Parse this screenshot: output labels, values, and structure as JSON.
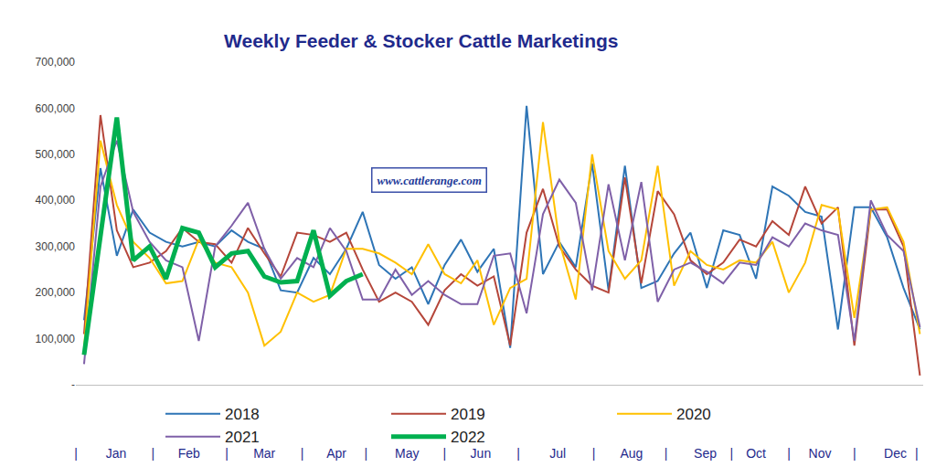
{
  "chart_data": {
    "type": "line",
    "title": "Weekly Feeder & Stocker Cattle Marketings",
    "x": [
      1,
      2,
      3,
      4,
      5,
      6,
      7,
      8,
      9,
      10,
      11,
      12,
      13,
      14,
      15,
      16,
      17,
      18,
      19,
      20,
      21,
      22,
      23,
      24,
      25,
      26,
      27,
      28,
      29,
      30,
      31,
      32,
      33,
      34,
      35,
      36,
      37,
      38,
      39,
      40,
      41,
      42,
      43,
      44,
      45,
      46,
      47,
      48,
      49,
      50,
      51,
      52
    ],
    "series": [
      {
        "name": "2018",
        "color": "#2e75b6",
        "values": [
          140000,
          470000,
          280000,
          380000,
          330000,
          310000,
          300000,
          310000,
          300000,
          335000,
          310000,
          295000,
          205000,
          200000,
          275000,
          240000,
          295000,
          375000,
          260000,
          230000,
          255000,
          175000,
          260000,
          315000,
          245000,
          295000,
          80000,
          605000,
          240000,
          310000,
          255000,
          480000,
          205000,
          475000,
          210000,
          225000,
          285000,
          330000,
          210000,
          335000,
          325000,
          230000,
          430000,
          410000,
          375000,
          365000,
          120000,
          385000,
          385000,
          320000,
          210000,
          120000
        ]
      },
      {
        "name": "2019",
        "color": "#b5463a",
        "values": [
          110000,
          585000,
          335000,
          255000,
          265000,
          290000,
          340000,
          310000,
          305000,
          265000,
          340000,
          285000,
          235000,
          330000,
          325000,
          310000,
          330000,
          250000,
          180000,
          200000,
          180000,
          130000,
          205000,
          240000,
          215000,
          235000,
          85000,
          330000,
          425000,
          300000,
          250000,
          215000,
          200000,
          450000,
          220000,
          420000,
          370000,
          270000,
          240000,
          265000,
          315000,
          300000,
          355000,
          325000,
          430000,
          350000,
          385000,
          85000,
          380000,
          380000,
          300000,
          20000
        ]
      },
      {
        "name": "2020",
        "color": "#ffc000",
        "values": [
          80000,
          530000,
          390000,
          310000,
          275000,
          220000,
          225000,
          315000,
          265000,
          255000,
          200000,
          85000,
          115000,
          200000,
          180000,
          195000,
          295000,
          295000,
          285000,
          265000,
          240000,
          305000,
          240000,
          220000,
          270000,
          130000,
          210000,
          230000,
          570000,
          310000,
          185000,
          500000,
          290000,
          230000,
          270000,
          475000,
          215000,
          290000,
          260000,
          250000,
          270000,
          265000,
          310000,
          200000,
          265000,
          390000,
          380000,
          145000,
          380000,
          385000,
          310000,
          110000
        ]
      },
      {
        "name": "2021",
        "color": "#7f60a8",
        "values": [
          45000,
          430000,
          530000,
          375000,
          310000,
          270000,
          255000,
          95000,
          300000,
          345000,
          395000,
          295000,
          230000,
          275000,
          255000,
          340000,
          290000,
          185000,
          185000,
          250000,
          195000,
          225000,
          195000,
          175000,
          175000,
          280000,
          285000,
          155000,
          370000,
          445000,
          395000,
          205000,
          435000,
          270000,
          440000,
          180000,
          250000,
          265000,
          245000,
          220000,
          265000,
          260000,
          320000,
          300000,
          350000,
          335000,
          325000,
          95000,
          400000,
          325000,
          290000,
          125000
        ]
      },
      {
        "name": "2022",
        "color": "#00b050",
        "values": [
          65000,
          330000,
          580000,
          270000,
          300000,
          230000,
          340000,
          330000,
          255000,
          285000,
          290000,
          235000,
          222000,
          225000,
          335000,
          193000,
          225000,
          240000,
          null,
          null,
          null,
          null,
          null,
          null,
          null,
          null,
          null,
          null,
          null,
          null,
          null,
          null,
          null,
          null,
          null,
          null,
          null,
          null,
          null,
          null,
          null,
          null,
          null,
          null,
          null,
          null,
          null,
          null,
          null,
          null,
          null,
          null
        ]
      }
    ],
    "xlim": [
      0.5,
      52.2
    ],
    "xticks": [
      {
        "value": 0.5,
        "label": "|"
      },
      {
        "value": 2.95,
        "label": "Jan"
      },
      {
        "value": 5.2,
        "label": "|"
      },
      {
        "value": 7.4,
        "label": "Feb"
      },
      {
        "value": 9.7,
        "label": "|"
      },
      {
        "value": 12.0,
        "label": "Mar"
      },
      {
        "value": 14.3,
        "label": "|"
      },
      {
        "value": 16.4,
        "label": "Apr"
      },
      {
        "value": 18.2,
        "label": "|"
      },
      {
        "value": 20.7,
        "label": "May"
      },
      {
        "value": 23.0,
        "label": "|"
      },
      {
        "value": 25.2,
        "label": "Jun"
      },
      {
        "value": 27.5,
        "label": "|"
      },
      {
        "value": 29.9,
        "label": "Jul"
      },
      {
        "value": 32.1,
        "label": "|"
      },
      {
        "value": 34.4,
        "label": "Aug"
      },
      {
        "value": 36.5,
        "label": "|"
      },
      {
        "value": 38.9,
        "label": "Sep"
      },
      {
        "value": 40.5,
        "label": "|"
      },
      {
        "value": 42.0,
        "label": "Oct"
      },
      {
        "value": 44.0,
        "label": "|"
      },
      {
        "value": 45.9,
        "label": "Nov"
      },
      {
        "value": 48.0,
        "label": "|"
      },
      {
        "value": 50.5,
        "label": "Dec"
      },
      {
        "value": 51.8,
        "label": "|"
      }
    ],
    "ylim": [
      0,
      700000
    ],
    "yticks": [
      {
        "value": 0,
        "label": "-"
      },
      {
        "value": 100000,
        "label": "100,000"
      },
      {
        "value": 200000,
        "label": "200,000"
      },
      {
        "value": 300000,
        "label": "300,000"
      },
      {
        "value": 400000,
        "label": "400,000"
      },
      {
        "value": 500000,
        "label": "500,000"
      },
      {
        "value": 600000,
        "label": "600,000"
      },
      {
        "value": 700000,
        "label": "700,000"
      }
    ],
    "grid": false,
    "legend": "bottom",
    "annotations": [
      {
        "text": "www.cattlerange.com"
      }
    ]
  }
}
